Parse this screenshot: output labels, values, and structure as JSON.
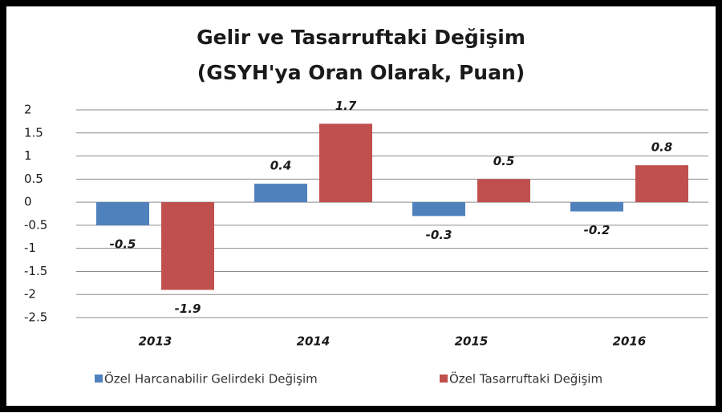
{
  "chart_data": {
    "type": "bar",
    "title": "Gelir ve Tasarruftaki Değişim",
    "subtitle": "(GSYH'ya Oran Olarak, Puan)",
    "categories": [
      "2013",
      "2014",
      "2015",
      "2016"
    ],
    "series": [
      {
        "name": "Özel Harcanabilir Gelirdeki Değişim",
        "color": "#4f81bd",
        "values": [
          -0.5,
          0.4,
          -0.3,
          -0.2
        ]
      },
      {
        "name": "Özel Tasarruftaki Değişim",
        "color": "#c0504d",
        "values": [
          -1.9,
          1.7,
          0.5,
          0.8
        ]
      }
    ],
    "ylim": [
      -2.5,
      2
    ],
    "yticks": [
      2,
      1.5,
      1,
      0.5,
      0,
      -0.5,
      -1,
      -1.5,
      -2,
      -2.5
    ],
    "grid": true,
    "legend": "bottom"
  }
}
